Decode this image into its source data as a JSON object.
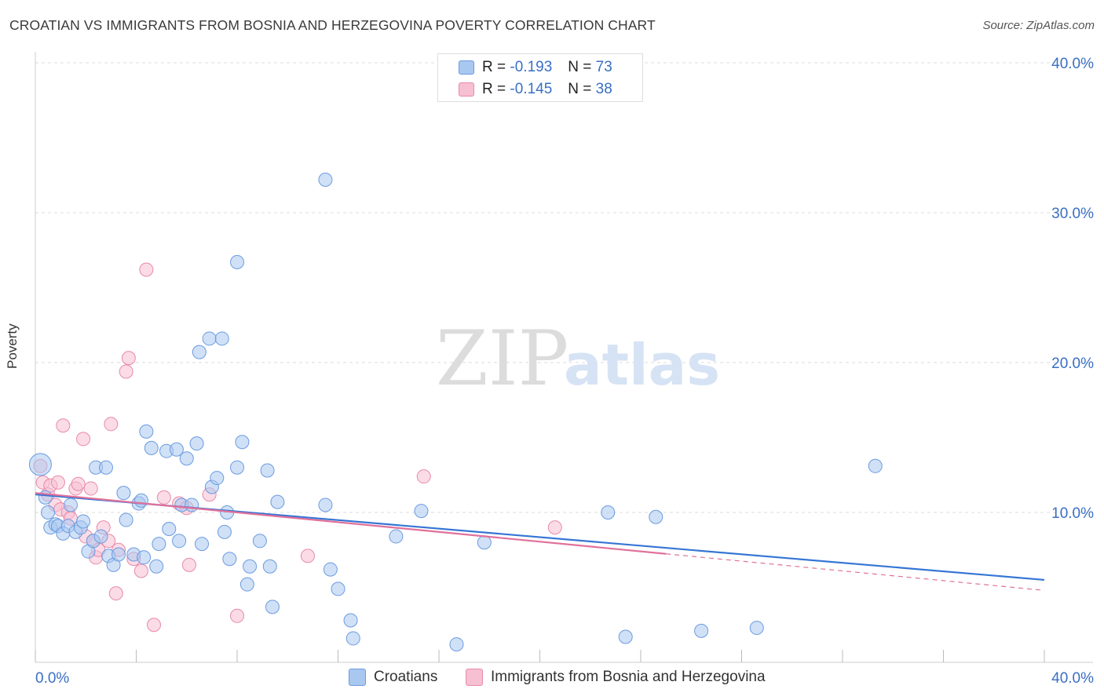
{
  "title": "CROATIAN VS IMMIGRANTS FROM BOSNIA AND HERZEGOVINA POVERTY CORRELATION CHART",
  "source": "Source: ZipAtlas.com",
  "watermark": {
    "zip": "ZIP",
    "atlas": "atlas"
  },
  "legend_top": [
    {
      "r_label": "R =",
      "r_value": "-0.193",
      "n_label": "N =",
      "n_value": "73"
    },
    {
      "r_label": "R =",
      "r_value": "-0.145",
      "n_label": "N =",
      "n_value": "38"
    }
  ],
  "legend_bottom": [
    "Croatians",
    "Immigrants from Bosnia and Herzegovina"
  ],
  "colors": {
    "croatians_fill": "#a9c8f0",
    "croatians_stroke": "#6b9be0",
    "croatians_line": "#3575d4",
    "bosnia_fill": "#f7bfd2",
    "bosnia_stroke": "#e889aa",
    "bosnia_line": "#e0719b",
    "tick_label": "#3a6fc4",
    "grid": "#dddddd"
  },
  "chart_data": {
    "type": "scatter",
    "title": "CROATIAN VS IMMIGRANTS FROM BOSNIA AND HERZEGOVINA POVERTY CORRELATION CHART",
    "xlabel": "",
    "ylabel": "Poverty",
    "xlim": [
      0,
      40
    ],
    "ylim": [
      0,
      40
    ],
    "x_tick_labels": [
      "0.0%",
      "40.0%"
    ],
    "y_tick_labels": [
      "10.0%",
      "20.0%",
      "30.0%",
      "40.0%"
    ],
    "y_ticks": [
      10,
      20,
      30,
      40
    ],
    "grid": "horizontal dashed",
    "legend_placement": "top-center and bottom",
    "series": [
      {
        "name": "Croatians",
        "r": -0.193,
        "n": 73,
        "trend": {
          "x": [
            0,
            40
          ],
          "y": [
            11.2,
            5.5
          ],
          "dashed_from": null
        },
        "points": [
          [
            0.2,
            13.2
          ],
          [
            0.4,
            11.0
          ],
          [
            0.5,
            10.0
          ],
          [
            0.6,
            9.0
          ],
          [
            0.8,
            9.2
          ],
          [
            0.9,
            9.1
          ],
          [
            1.1,
            8.6
          ],
          [
            1.3,
            9.1
          ],
          [
            1.4,
            10.5
          ],
          [
            1.6,
            8.7
          ],
          [
            1.8,
            9.0
          ],
          [
            1.9,
            9.4
          ],
          [
            2.1,
            7.4
          ],
          [
            2.3,
            8.1
          ],
          [
            2.4,
            13.0
          ],
          [
            2.6,
            8.4
          ],
          [
            2.8,
            13.0
          ],
          [
            2.9,
            7.1
          ],
          [
            3.1,
            6.5
          ],
          [
            3.3,
            7.2
          ],
          [
            3.5,
            11.3
          ],
          [
            3.6,
            9.5
          ],
          [
            3.9,
            7.2
          ],
          [
            4.1,
            10.6
          ],
          [
            4.2,
            10.8
          ],
          [
            4.3,
            7.0
          ],
          [
            4.4,
            15.4
          ],
          [
            4.6,
            14.3
          ],
          [
            4.8,
            6.4
          ],
          [
            4.9,
            7.9
          ],
          [
            5.2,
            14.1
          ],
          [
            5.3,
            8.9
          ],
          [
            5.6,
            14.2
          ],
          [
            5.7,
            8.1
          ],
          [
            5.8,
            10.5
          ],
          [
            6.0,
            13.6
          ],
          [
            6.2,
            10.5
          ],
          [
            6.4,
            14.6
          ],
          [
            6.5,
            20.7
          ],
          [
            6.6,
            7.9
          ],
          [
            6.9,
            21.6
          ],
          [
            7.0,
            11.7
          ],
          [
            7.2,
            12.3
          ],
          [
            7.4,
            21.6
          ],
          [
            7.5,
            8.7
          ],
          [
            7.6,
            10.0
          ],
          [
            7.7,
            6.9
          ],
          [
            8.0,
            13.0
          ],
          [
            8.0,
            26.7
          ],
          [
            8.2,
            14.7
          ],
          [
            8.4,
            5.2
          ],
          [
            8.5,
            6.4
          ],
          [
            8.9,
            8.1
          ],
          [
            9.2,
            12.8
          ],
          [
            9.3,
            6.4
          ],
          [
            9.4,
            3.7
          ],
          [
            9.6,
            10.7
          ],
          [
            11.5,
            10.5
          ],
          [
            11.5,
            32.2
          ],
          [
            11.7,
            6.2
          ],
          [
            12.0,
            4.9
          ],
          [
            12.5,
            2.8
          ],
          [
            12.6,
            1.6
          ],
          [
            14.3,
            8.4
          ],
          [
            15.3,
            10.1
          ],
          [
            16.7,
            1.2
          ],
          [
            17.8,
            8.0
          ],
          [
            22.7,
            10.0
          ],
          [
            23.4,
            1.7
          ],
          [
            24.6,
            9.7
          ],
          [
            26.4,
            2.1
          ],
          [
            28.6,
            2.3
          ],
          [
            33.3,
            13.1
          ]
        ]
      },
      {
        "name": "Immigrants from Bosnia and Herzegovina",
        "r": -0.145,
        "n": 38,
        "trend": {
          "x": [
            0,
            40
          ],
          "y": [
            11.3,
            4.8
          ],
          "dashed_from": 25
        },
        "points": [
          [
            0.2,
            13.1
          ],
          [
            0.3,
            12.0
          ],
          [
            0.5,
            11.2
          ],
          [
            0.6,
            11.8
          ],
          [
            0.8,
            10.5
          ],
          [
            0.9,
            12.0
          ],
          [
            1.0,
            10.2
          ],
          [
            1.1,
            15.8
          ],
          [
            1.3,
            10.0
          ],
          [
            1.4,
            9.6
          ],
          [
            1.6,
            11.6
          ],
          [
            1.7,
            11.9
          ],
          [
            1.9,
            14.9
          ],
          [
            2.0,
            8.4
          ],
          [
            2.2,
            11.6
          ],
          [
            2.3,
            8.1
          ],
          [
            2.4,
            7.0
          ],
          [
            2.5,
            7.5
          ],
          [
            2.7,
            9.0
          ],
          [
            2.9,
            8.1
          ],
          [
            3.0,
            15.9
          ],
          [
            3.2,
            4.6
          ],
          [
            3.3,
            7.5
          ],
          [
            3.6,
            19.4
          ],
          [
            3.7,
            20.3
          ],
          [
            3.9,
            6.9
          ],
          [
            4.2,
            6.1
          ],
          [
            4.4,
            26.2
          ],
          [
            4.7,
            2.5
          ],
          [
            5.1,
            11.0
          ],
          [
            5.7,
            10.6
          ],
          [
            6.1,
            6.5
          ],
          [
            6.9,
            11.2
          ],
          [
            8.0,
            3.1
          ],
          [
            10.8,
            7.1
          ],
          [
            15.4,
            12.4
          ],
          [
            20.6,
            9.0
          ],
          [
            6.0,
            10.3
          ]
        ]
      }
    ]
  }
}
